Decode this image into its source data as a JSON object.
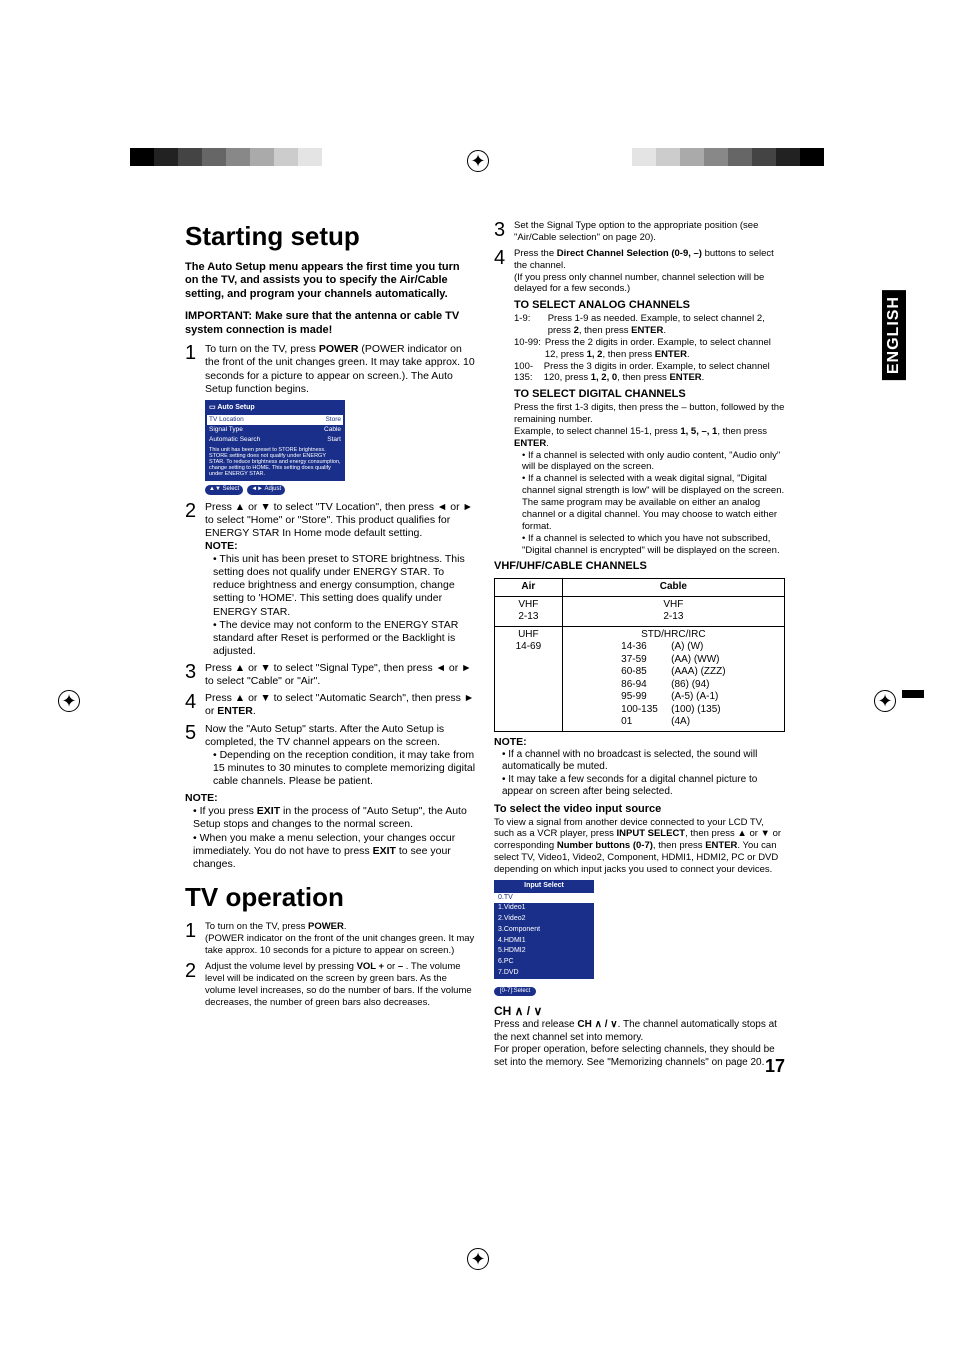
{
  "header": {
    "leftGrays": [
      "#000000",
      "#222222",
      "#444444",
      "#666666",
      "#888888",
      "#aaaaaa",
      "#cccccc",
      "#e4e4e4",
      "#ffffff"
    ],
    "rightGrays": [
      "#ffffff",
      "#e4e4e4",
      "#cccccc",
      "#aaaaaa",
      "#888888",
      "#666666",
      "#444444",
      "#222222",
      "#000000"
    ]
  },
  "sidetab": "ENGLISH",
  "title1": "Starting setup",
  "intro": "The Auto Setup menu appears the first time you turn on the TV, and assists you to specify the Air/Cable setting, and program your channels automatically.",
  "important": "IMPORTANT: Make sure that the antenna or cable TV system connection is made!",
  "s1": {
    "a": "To turn on the TV, press ",
    "b": "POWER",
    "c": " (POWER indicator on the front of the unit changes green. It may take approx. 10 seconds for a picture to appear on screen.). The Auto Setup function begins."
  },
  "osd": {
    "title": "Auto Setup",
    "r1a": "TV Location",
    "r1b": "Store",
    "r2a": "Signal Type",
    "r2b": "Cable",
    "r3a": "Automatic Search",
    "r3b": "Start",
    "note": "This unit has been preset to STORE brightness. STORE setting does not qualify under ENERGY STAR. To reduce brightness and energy consumption, change setting to HOME. This setting does qualify under ENERGY STAR.",
    "btn1": "Select",
    "btn2": "Adjust"
  },
  "s2": {
    "a": "Press ▲ or ▼ to select \"TV Location\", then press ◄ or ► to select \"Home\" or \"Store\". This product qualifies for ENERGY STAR In Home mode default setting."
  },
  "s2note": {
    "h": "NOTE:",
    "li1": "This unit has been preset to STORE brightness. This setting does not qualify under ENERGY STAR. To reduce brightness and energy consumption, change setting to 'HOME'. This setting does qualify under ENERGY STAR.",
    "li2": "The device may not conform to the ENERGY STAR standard after Reset is performed or the Backlight is adjusted."
  },
  "s3": "Press ▲ or ▼ to select \"Signal Type\", then press ◄ or ► to select \"Cable\" or \"Air\".",
  "s4": {
    "a": "Press ▲ or ▼ to select \"Automatic Search\", then press ► or ",
    "b": "ENTER",
    "c": "."
  },
  "s5": {
    "a": "Now the \"Auto Setup\" starts. After the Auto Setup is completed, the TV channel appears on the screen.",
    "li": "Depending on the reception condition, it may take from 15 minutes to 30 minutes to complete memorizing digital cable channels. Please be patient."
  },
  "noteA": {
    "h": "NOTE:",
    "li1a": "If you press ",
    "li1b": "EXIT",
    "li1c": " in the process of \"Auto Setup\", the Auto Setup stops and changes to the normal screen.",
    "li2a": "When you make a menu selection, your changes occur immediately. You do not have to press ",
    "li2b": "EXIT",
    "li2c": " to see your changes."
  },
  "title2": "TV operation",
  "tv1": {
    "a": "To turn on the TV, press ",
    "b": "POWER",
    "c": ".",
    "d": "(POWER indicator on the front of the unit changes green. It may take approx. 10 seconds for a picture to appear on screen.)"
  },
  "tv2": {
    "a": "Adjust the volume level by pressing ",
    "b": "VOL +",
    "c": " or ",
    "d": "–",
    "e": " . The volume level will be indicated on the screen by green bars. As the volume level increases, so do the number of bars. If the volume decreases, the number of green bars also decreases."
  },
  "r3txt": "Set the Signal Type option to the appropriate position (see \"Air/Cable selection\" on page 20).",
  "r4": {
    "a": "Press the ",
    "b": "Direct Channel Selection (0-9, –)",
    "c": " buttons to select the channel.",
    "d": "(If you press only channel number, channel selection will be delayed for a few seconds.)"
  },
  "analog": {
    "h": "TO SELECT ANALOG CHANNELS",
    "r1a": "1-9:",
    "r1b": "Press 1-9 as needed. Example, to select channel 2, press ",
    "r1b2": "2",
    "r1c": ", then press ",
    "r1d": "ENTER",
    "r1e": ".",
    "r2a": "10-99:",
    "r2b": "Press the 2 digits in order. Example, to select channel 12, press ",
    "r2n": "1, 2",
    "r2c": ", then press ",
    "r2d": "ENTER",
    "r2e": ".",
    "r3a": "100-135:",
    "r3b": "Press the 3 digits in order. Example, to select channel 120, press ",
    "r3n": "1, 2, 0",
    "r3c": ", then press ",
    "r3d": "ENTER",
    "r3e": "."
  },
  "digital": {
    "h": "TO SELECT DIGITAL CHANNELS",
    "p1": "Press the first 1-3 digits, then press the – button, followed by the remaining number.",
    "p2a": "Example, to select channel 15-1, press ",
    "p2n": "1, 5, –, 1",
    "p2b": ", then press ",
    "p2c": "ENTER",
    "p2d": ".",
    "li1": "If a channel is selected with only audio content, \"Audio only\" will be displayed on the screen.",
    "li2": "If a channel is selected with a weak digital signal, \"Digital channel signal strength is low\" will be displayed on the screen. The same program may be available on either an analog channel or a digital channel. You may choose to watch either format.",
    "li3": "If a channel is selected to which you have not subscribed, \"Digital channel is encrypted\" will be displayed on the screen."
  },
  "chtable": {
    "h": "VHF/UHF/CABLE CHANNELS",
    "air": "Air",
    "cable": "Cable",
    "vhf": "VHF",
    "vhfr": "2-13",
    "uhf": "UHF",
    "uhfr": "14-69",
    "std": "STD/HRC/IRC",
    "rows": [
      [
        "14-36",
        "(A) (W)"
      ],
      [
        "37-59",
        "(AA) (WW)"
      ],
      [
        "60-85",
        "(AAA) (ZZZ)"
      ],
      [
        "86-94",
        "(86) (94)"
      ],
      [
        "95-99",
        "(A-5) (A-1)"
      ],
      [
        "100-135",
        "(100) (135)"
      ],
      [
        "01",
        "(4A)"
      ]
    ]
  },
  "noteB": {
    "h": "NOTE:",
    "li1": "If a channel with no broadcast is selected, the sound will automatically be muted.",
    "li2": "It may take a few seconds for a digital channel picture to appear on screen after being selected."
  },
  "inputsrc": {
    "h": "To select the video input source",
    "p1a": "To view a signal from another device connected to your LCD TV, such as a VCR player, press ",
    "p1b": "INPUT SELECT",
    "p1c": ", then press ▲ or ▼ or corresponding ",
    "p1d": "Number buttons (0-7)",
    "p1e": ", then press ",
    "p1f": "ENTER",
    "p1g": ". You can select TV, Video1, Video2, Component, HDMI1, HDMI2, PC or DVD depending on which input jacks you used to connect your devices."
  },
  "inputbox": {
    "title": "Input Select",
    "items": [
      "0.TV",
      "1.Video1",
      "2.Video2",
      "3.Component",
      "4.HDMI1",
      "5.HDMI2",
      "6.PC",
      "7.DVD"
    ],
    "foot": "[0-7]:Select"
  },
  "ch": {
    "h": "CH ∧ / ∨",
    "p1a": "Press and release ",
    "p1b": "CH ∧ / ∨",
    "p1c": ". The channel automatically stops at the next channel set into memory.",
    "p2": "For proper operation, before selecting channels, they should be set into the memory. See \"Memorizing channels\" on page 20."
  },
  "pagenum": "17"
}
